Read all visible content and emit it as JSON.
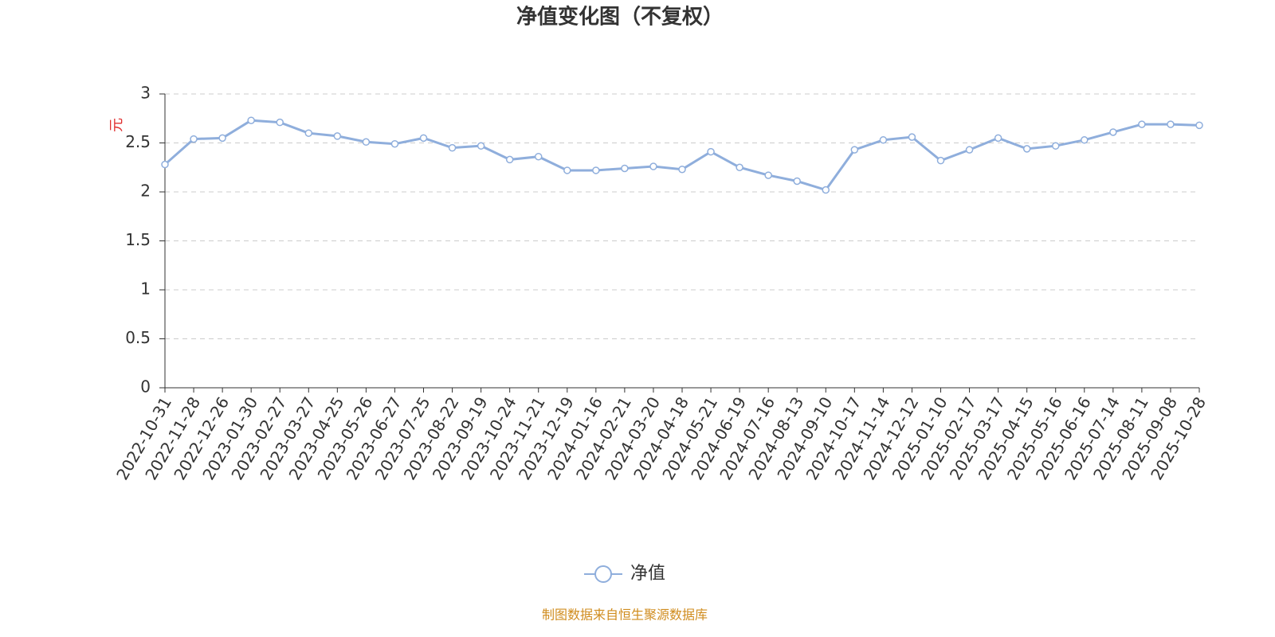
{
  "chart_data": {
    "type": "line",
    "title": "净值变化图（不复权）",
    "y_label": "元",
    "categories": [
      "2022-10-31",
      "2022-11-28",
      "2022-12-26",
      "2023-01-30",
      "2023-02-27",
      "2023-03-27",
      "2023-04-25",
      "2023-05-26",
      "2023-06-27",
      "2023-07-25",
      "2023-08-22",
      "2023-09-19",
      "2023-10-24",
      "2023-11-21",
      "2023-12-19",
      "2024-01-16",
      "2024-02-21",
      "2024-03-20",
      "2024-04-18",
      "2024-05-21",
      "2024-06-19",
      "2024-07-16",
      "2024-08-13",
      "2024-09-10",
      "2024-10-17",
      "2024-11-14",
      "2024-12-12",
      "2025-01-10",
      "2025-02-17",
      "2025-03-17",
      "2025-04-15",
      "2025-05-16",
      "2025-06-16",
      "2025-07-14",
      "2025-08-11",
      "2025-09-08",
      "2025-10-28"
    ],
    "series": [
      {
        "name": "净值",
        "color": "#8faedc",
        "values": [
          2.28,
          2.54,
          2.55,
          2.73,
          2.71,
          2.6,
          2.57,
          2.51,
          2.49,
          2.55,
          2.45,
          2.47,
          2.33,
          2.36,
          2.22,
          2.22,
          2.24,
          2.26,
          2.23,
          2.41,
          2.25,
          2.17,
          2.11,
          2.02,
          2.43,
          2.53,
          2.56,
          2.32,
          2.43,
          2.55,
          2.44,
          2.47,
          2.53,
          2.61,
          2.69,
          2.69,
          2.68
        ]
      }
    ],
    "ylim": [
      0,
      3
    ],
    "yticks": [
      0,
      0.5,
      1,
      1.5,
      2,
      2.5,
      3
    ],
    "grid": true,
    "source": "制图数据来自恒生聚源数据库"
  }
}
